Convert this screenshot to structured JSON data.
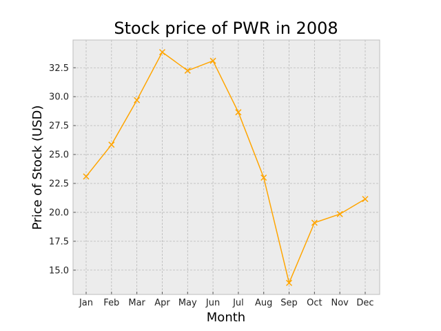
{
  "chart_data": {
    "type": "line",
    "title": "Stock price of PWR in 2008",
    "xlabel": "Month",
    "ylabel": "Price of Stock (USD)",
    "categories": [
      "Jan",
      "Feb",
      "Mar",
      "Apr",
      "May",
      "Jun",
      "Jul",
      "Aug",
      "Sep",
      "Oct",
      "Nov",
      "Dec"
    ],
    "series": [
      {
        "values": [
          23.1,
          25.85,
          29.7,
          33.85,
          32.25,
          33.1,
          28.65,
          23.0,
          13.9,
          19.1,
          19.85,
          21.15
        ]
      }
    ],
    "ylim": [
      12.9,
      34.9
    ],
    "yticks": [
      "15.0",
      "17.5",
      "20.0",
      "22.5",
      "25.0",
      "27.5",
      "30.0",
      "32.5"
    ],
    "grid": true,
    "marker": "x",
    "colors": {
      "line": "#ffa500",
      "plot_bg": "#ececec",
      "frame": "#bcbcbc"
    }
  }
}
